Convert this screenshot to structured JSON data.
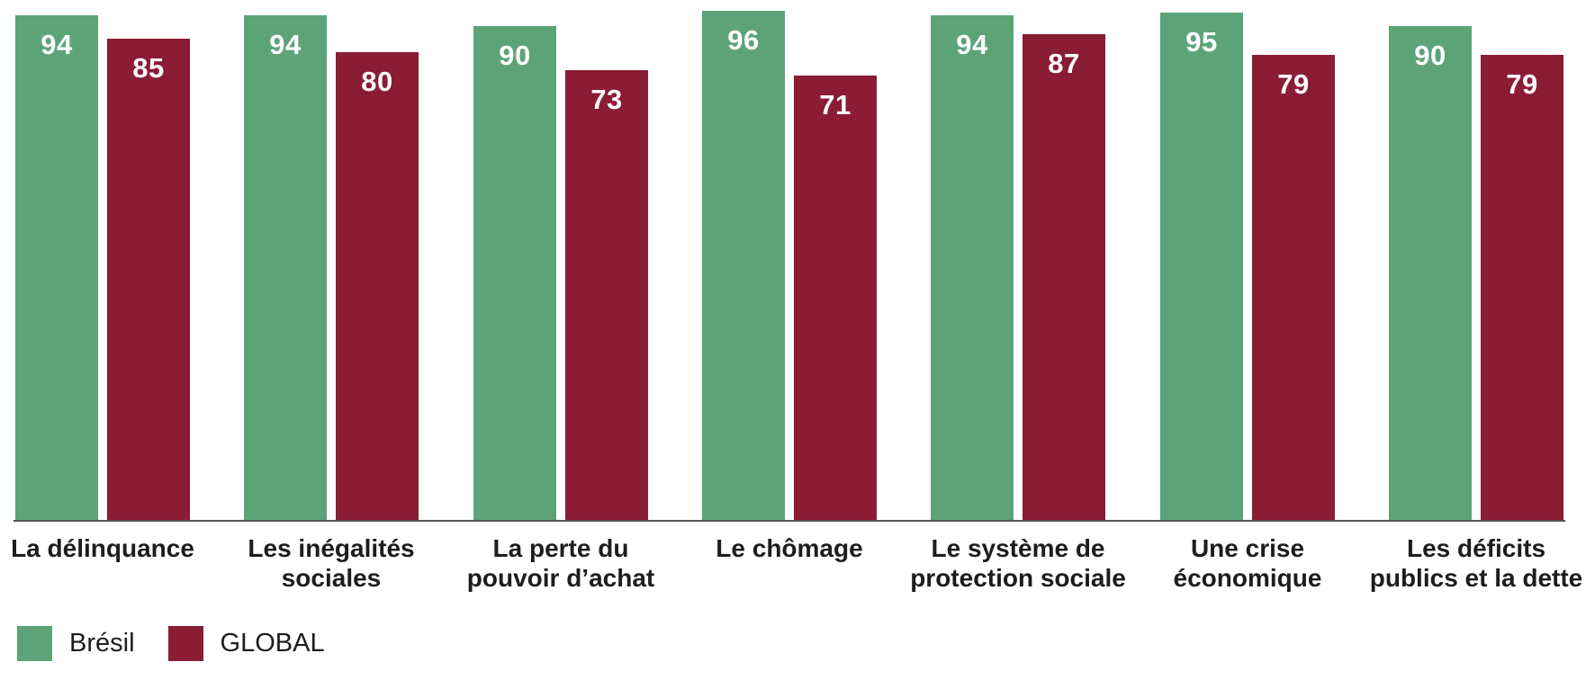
{
  "chart_data": {
    "type": "bar",
    "categories": [
      "La délinquance",
      "Les inégalités\nsociales",
      "La perte du\npouvoir d’achat",
      "Le chômage",
      "Le système de\nprotection sociale",
      "Une crise\néconomique",
      "Les déficits\npublics et la dette"
    ],
    "series": [
      {
        "name": "Brésil",
        "color": "#5CA478",
        "values": [
          94,
          94,
          90,
          96,
          94,
          95,
          90
        ]
      },
      {
        "name": "GLOBAL",
        "color": "#8A1C33",
        "values": [
          85,
          80,
          73,
          71,
          87,
          79,
          79
        ]
      }
    ],
    "title": "",
    "xlabel": "",
    "ylabel": "",
    "ylim": [
      -100,
      100
    ],
    "grid": false,
    "legend_position": "bottom-left",
    "value_label_position": "inside-top"
  },
  "colors": {
    "series_bresil": "#5CA478",
    "series_global": "#8A1C33",
    "axis_line": "#515356",
    "category_text": "#1D1D1B",
    "value_text": "#FFFFFF",
    "background": "#FFFFFF"
  }
}
